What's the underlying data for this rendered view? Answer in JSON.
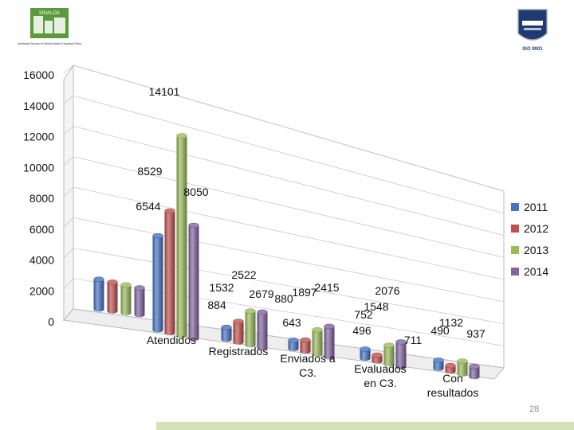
{
  "header": {
    "left_logo": {
      "icon": "sinaloa-logo",
      "name": "SINALOA",
      "caption": "Secretariado Ejecutivo del Sistema Estatal de Seguridad Pública"
    },
    "right_logo": {
      "icon": "instituto-estatal-seal",
      "caption": "ISO 9001"
    }
  },
  "page_number": "28",
  "colors": {
    "2011": "#4472c4",
    "2012": "#c0504d",
    "2013": "#9bbb59",
    "2014": "#8064a2"
  },
  "chart_data": {
    "type": "bar",
    "title": "",
    "xlabel": "",
    "ylabel": "",
    "ylim": [
      0,
      16000
    ],
    "y_ticks": [
      0,
      2000,
      4000,
      6000,
      8000,
      10000,
      12000,
      14000,
      16000
    ],
    "grid": true,
    "legend_position": "right",
    "categories": [
      {
        "lines": [
          "Atendidos"
        ]
      },
      {
        "lines": [
          "Registrados"
        ]
      },
      {
        "lines": [
          "Enviados a",
          "C3."
        ]
      },
      {
        "lines": [
          "Evaluados",
          "en C3."
        ]
      },
      {
        "lines": [
          "Con",
          "resultados"
        ]
      }
    ],
    "series": [
      {
        "name": "2011",
        "values": [
          6544,
          884,
          643,
          752,
          711
        ],
        "labels": [
          "6544",
          "884",
          "643",
          "752",
          "711"
        ]
      },
      {
        "name": "2012",
        "values": [
          8529,
          1532,
          880,
          496,
          490
        ],
        "labels": [
          "8529",
          "1532",
          "880",
          "496",
          "490"
        ]
      },
      {
        "name": "2013",
        "values": [
          14101,
          2522,
          1897,
          1548,
          1132
        ],
        "labels": [
          "14101",
          "2522",
          "1897",
          "1548",
          "1132"
        ]
      },
      {
        "name": "2014",
        "values": [
          8050,
          2679,
          2415,
          2076,
          937
        ],
        "labels": [
          "8050",
          "2679",
          "2415",
          "2076",
          "937"
        ]
      }
    ],
    "back_row_values": [
      2000,
      1950,
      1900,
      1850
    ]
  }
}
